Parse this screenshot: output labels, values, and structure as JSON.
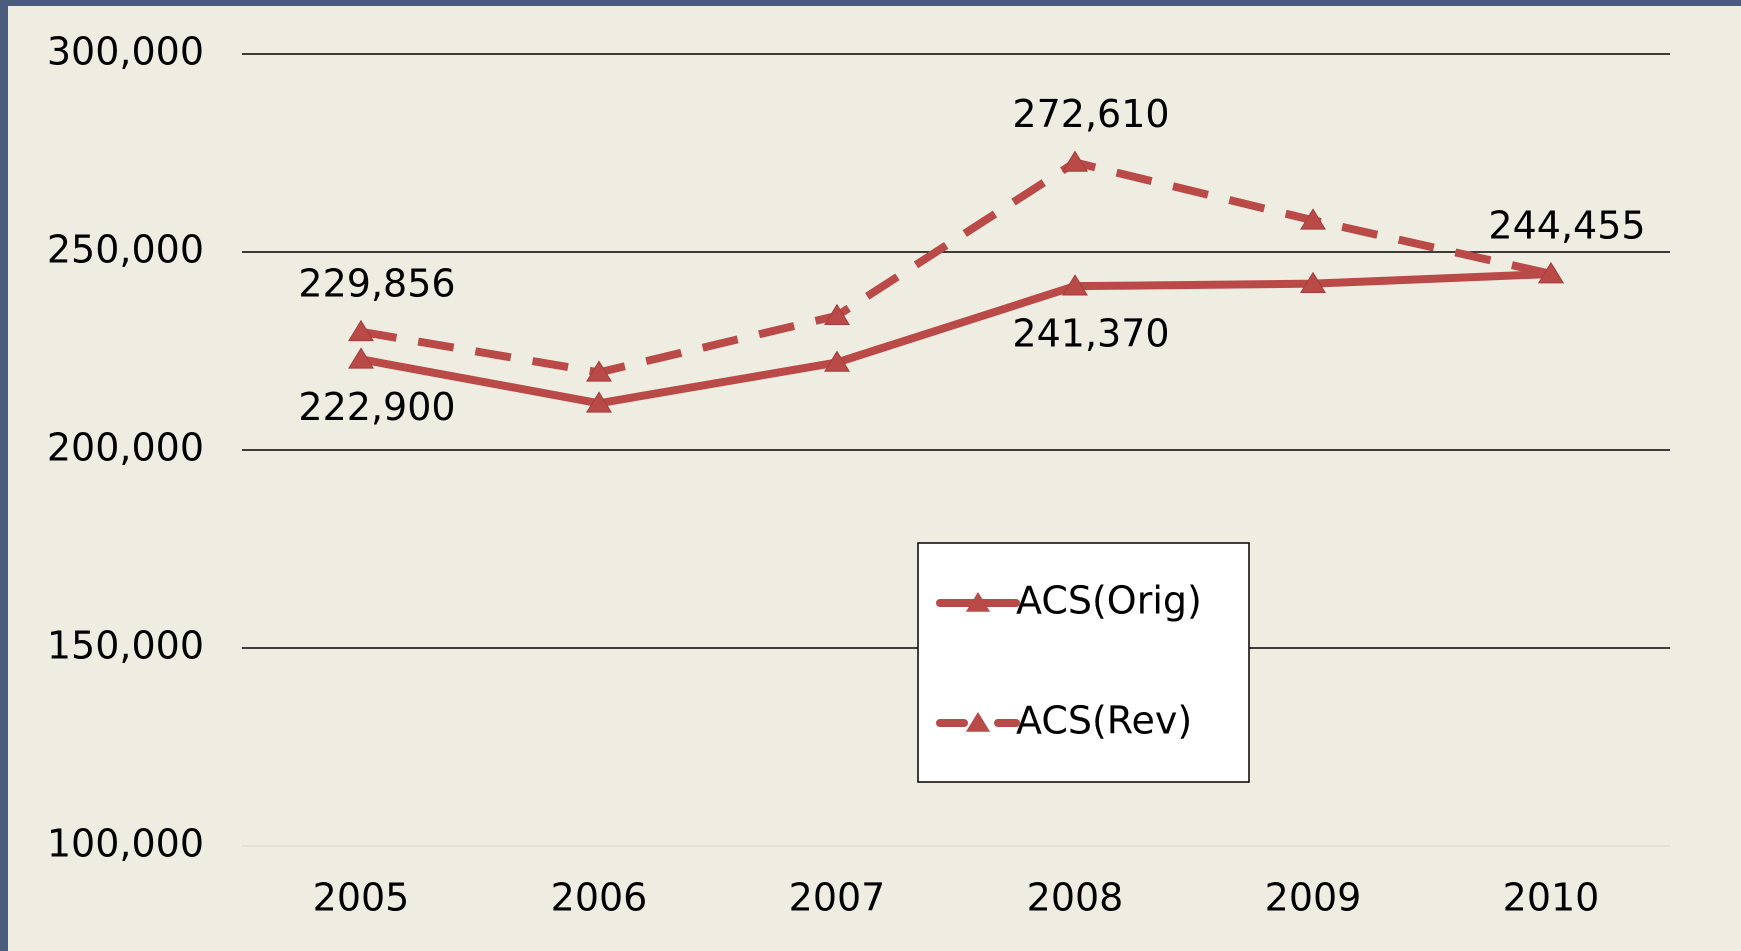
{
  "chart_data": {
    "type": "line",
    "categories": [
      "2005",
      "2006",
      "2007",
      "2008",
      "2009",
      "2010"
    ],
    "series": [
      {
        "name": "ACS(Orig)",
        "color": "#b94a48",
        "line_style": "solid",
        "values": [
          222900,
          211800,
          222100,
          241370,
          242000,
          244455
        ],
        "value_labels": [
          "222,900",
          null,
          null,
          "241,370",
          null,
          "244,455"
        ]
      },
      {
        "name": "ACS(Rev)",
        "color": "#b94a48",
        "line_style": "dashed",
        "values": [
          229856,
          219600,
          233900,
          272610,
          258000,
          244455
        ],
        "value_labels": [
          "229,856",
          null,
          null,
          "272,610",
          null,
          null
        ]
      }
    ],
    "ylim": [
      100000,
      300000
    ],
    "yticks": [
      {
        "value": 100000,
        "label": "100,000"
      },
      {
        "value": 150000,
        "label": "150,000"
      },
      {
        "value": 200000,
        "label": "200,000"
      },
      {
        "value": 250000,
        "label": "250,000"
      },
      {
        "value": 300000,
        "label": "300,000"
      }
    ],
    "grid": true,
    "legend": "center"
  }
}
